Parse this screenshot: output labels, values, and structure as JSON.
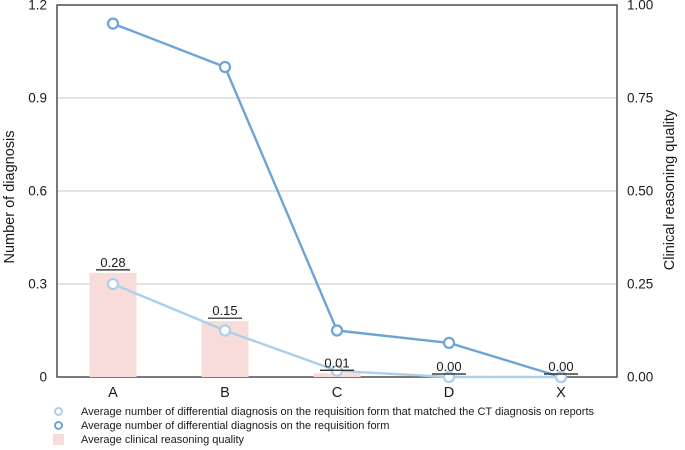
{
  "chart_data": {
    "type": "combo-bar-line",
    "categories": [
      "A",
      "B",
      "C",
      "D",
      "X"
    ],
    "left_axis": {
      "label": "Number of diagnosis",
      "ticks": [
        0,
        0.3,
        0.6,
        0.9,
        1.2
      ],
      "tick_labels": [
        "0",
        "0.3",
        "0.6",
        "0.9",
        "1.2"
      ],
      "range": [
        0,
        1.2
      ]
    },
    "right_axis": {
      "label": "Clinical reasoning quality",
      "ticks": [
        0,
        0.25,
        0.5,
        0.75,
        1.0
      ],
      "tick_labels": [
        "0.00",
        "0.25",
        "0.50",
        "0.75",
        "1.00"
      ],
      "range": [
        0,
        1.0
      ]
    },
    "grid": true,
    "legend_position": "bottom-left",
    "series": [
      {
        "name": "Average number of differential diagnosis on the requisition form that matched the CT diagnosis on reports",
        "type": "line",
        "axis": "left",
        "marker": "open-circle",
        "color": "#aecfea",
        "values": [
          0.3,
          0.15,
          0.02,
          0.0,
          0.0
        ]
      },
      {
        "name": "Average number of differential diagnosis on the requisition form",
        "type": "line",
        "axis": "left",
        "marker": "open-circle",
        "color": "#6ca4d8",
        "values": [
          1.14,
          1.0,
          0.15,
          0.11,
          0.0
        ]
      },
      {
        "name": "Average clinical reasoning quality",
        "type": "bar",
        "axis": "right",
        "color": "#f7dcda",
        "values": [
          0.28,
          0.15,
          0.01,
          0.0,
          0.0
        ],
        "data_labels": [
          "0.28",
          "0.15",
          "0.01",
          "0.00",
          "0.00"
        ]
      }
    ],
    "colors": {
      "grid": "#c9c9c9",
      "border": "#4d4d4d",
      "text": "#1a1a1a",
      "label_underline": "#1a1a1a"
    }
  }
}
